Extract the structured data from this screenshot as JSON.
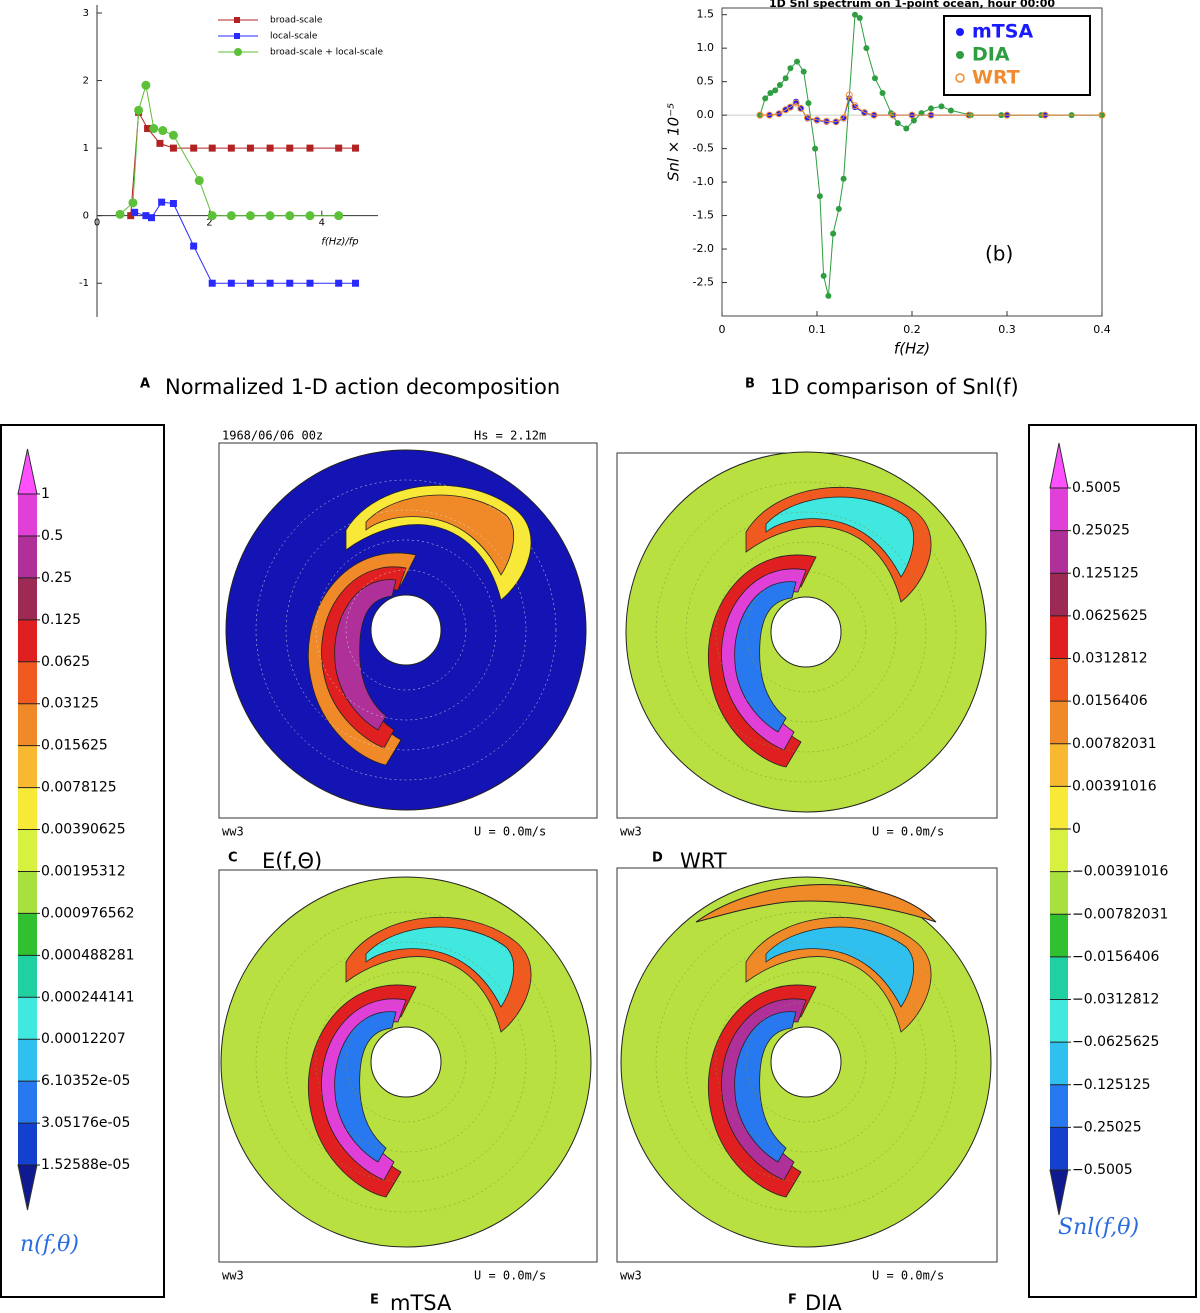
{
  "chart_data": [
    {
      "type": "line",
      "panel_label": "A",
      "caption": "Normalized 1-D action decomposition",
      "xlabel": "f(Hz)/fp",
      "xlim": [
        0,
        5
      ],
      "ylim": [
        -1.5,
        3
      ],
      "xticks": [
        0,
        2,
        4
      ],
      "yticks": [
        -1,
        0,
        1,
        2,
        3
      ],
      "grid": false,
      "legend": "upper right",
      "series": [
        {
          "name": "broad-scale",
          "color": "#b22222",
          "marker": "square",
          "x": [
            0.6,
            0.74,
            0.9,
            1.12,
            1.36,
            1.72,
            2.05,
            2.39,
            2.73,
            3.08,
            3.43,
            3.79,
            4.3,
            4.6
          ],
          "values": [
            0,
            1.53,
            1.29,
            1.07,
            1.0,
            1.0,
            1.0,
            1.0,
            1.0,
            1.0,
            1.0,
            1.0,
            1.0,
            1.0
          ]
        },
        {
          "name": "local-scale",
          "color": "#2a2aff",
          "marker": "square",
          "x": [
            0.67,
            0.87,
            0.97,
            1.15,
            1.36,
            1.72,
            2.05,
            2.39,
            2.73,
            3.08,
            3.43,
            3.79,
            4.3,
            4.6
          ],
          "values": [
            0.05,
            0,
            -0.03,
            0.2,
            0.18,
            -0.45,
            -1,
            -1,
            -1,
            -1,
            -1,
            -1,
            -1,
            -1
          ]
        },
        {
          "name": "broad-scale + local-scale",
          "color": "#5cc038",
          "marker": "circle",
          "x": [
            0.41,
            0.64,
            0.74,
            0.87,
            1.01,
            1.17,
            1.36,
            1.82,
            2.05,
            2.39,
            2.73,
            3.08,
            3.43,
            3.79,
            4.3
          ],
          "values": [
            0.02,
            0.19,
            1.56,
            1.93,
            1.29,
            1.26,
            1.19,
            0.52,
            0,
            0,
            0,
            0,
            0,
            0,
            0
          ]
        }
      ]
    },
    {
      "type": "line",
      "panel_label": "B",
      "caption": "1D comparison of Snl(f)",
      "title": "1D Snl spectrum on 1-point ocean, hour 00:00",
      "xlabel": "f(Hz)",
      "ylabel": "Snl × 10⁻⁵",
      "annotation": "(b)",
      "xlim": [
        0,
        0.4
      ],
      "ylim": [
        -3,
        1.6
      ],
      "xticks": [
        0,
        0.1,
        0.2,
        0.3,
        0.4
      ],
      "yticks": [
        1.5,
        {
          "value": 1,
          "label": "1.0"
        },
        0.5,
        {
          "value": 0,
          "label": "0.0"
        },
        -0.5,
        {
          "value": -1,
          "label": "-1.0"
        },
        -1.5,
        {
          "value": -2,
          "label": "-2.0"
        },
        -2.5
      ],
      "grid": false,
      "legend": "upper right",
      "series": [
        {
          "name": "mTSA",
          "color": "#1a1aff",
          "marker": "circle",
          "x": [
            0.04,
            0.05,
            0.06,
            0.067,
            0.072,
            0.078,
            0.083,
            0.09,
            0.1,
            0.11,
            0.12,
            0.128,
            0.134,
            0.14,
            0.15,
            0.16,
            0.18,
            0.2,
            0.22,
            0.26,
            0.3,
            0.34,
            0.4
          ],
          "values": [
            0,
            0,
            0.02,
            0.08,
            0.12,
            0.2,
            0.1,
            -0.05,
            -0.08,
            -0.1,
            -0.1,
            -0.05,
            0.25,
            0.12,
            0.03,
            0,
            0,
            0,
            0,
            0,
            0,
            0,
            0
          ]
        },
        {
          "name": "DIA",
          "color": "#2e9e40",
          "marker": "circle",
          "x": [
            0.04,
            0.0455,
            0.051,
            0.056,
            0.061,
            0.067,
            0.072,
            0.079,
            0.086,
            0.091,
            0.098,
            0.103,
            0.107,
            0.112,
            0.117,
            0.123,
            0.128,
            0.14,
            0.145,
            0.152,
            0.161,
            0.169,
            0.178,
            0.185,
            0.194,
            0.202,
            0.21,
            0.22,
            0.231,
            0.241,
            0.262,
            0.294,
            0.336,
            0.368,
            0.4
          ],
          "values": [
            0,
            0.25,
            0.33,
            0.37,
            0.45,
            0.55,
            0.7,
            0.8,
            0.65,
            0.18,
            -0.5,
            -1.21,
            -2.4,
            -2.7,
            -1.77,
            -1.4,
            -0.95,
            1.5,
            1.45,
            1.0,
            0.55,
            0.33,
            0.03,
            -0.12,
            -0.2,
            -0.08,
            0.03,
            0.1,
            0.13,
            0.07,
            0,
            0,
            0,
            0,
            0
          ]
        },
        {
          "name": "WRT",
          "color": "#f08c30",
          "marker": "open-circle",
          "x": [
            0.04,
            0.05,
            0.06,
            0.067,
            0.072,
            0.078,
            0.083,
            0.09,
            0.1,
            0.11,
            0.12,
            0.128,
            0.134,
            0.14,
            0.15,
            0.16,
            0.18,
            0.2,
            0.22,
            0.26,
            0.3,
            0.34,
            0.4
          ],
          "values": [
            0,
            0,
            0.02,
            0.08,
            0.12,
            0.18,
            0.1,
            -0.04,
            -0.07,
            -0.09,
            -0.1,
            -0.04,
            0.3,
            0.14,
            0.04,
            0,
            0,
            0,
            0,
            0,
            0,
            0,
            0
          ]
        }
      ]
    }
  ],
  "panels": [
    {
      "label": "C",
      "caption": "E(f,Θ)",
      "header_left": "1968/06/06 00z",
      "header_right": "Hs =  2.12m",
      "footer_left": "ww3",
      "footer_right": "U =  0.0m/s"
    },
    {
      "label": "D",
      "caption": "WRT",
      "footer_left": "ww3",
      "footer_right": "U =  0.0m/s"
    },
    {
      "label": "E",
      "caption": "mTSA",
      "footer_left": "ww3",
      "footer_right": "U =  0.0m/s"
    },
    {
      "label": "F",
      "caption": "DIA",
      "footer_left": "ww3",
      "footer_right": "U =  0.0m/s"
    }
  ],
  "palette": {
    "top": "#ff50ff",
    "bottom": "#101a90",
    "segments": [
      "#e040d8",
      "#b0309a",
      "#9c2a55",
      "#e02020",
      "#f05a20",
      "#f08a28",
      "#f8b830",
      "#f8e838",
      "#d8f040",
      "#a8e040",
      "#30c030",
      "#20d0a0",
      "#40e8e0",
      "#30c0f0",
      "#2878f0",
      "#1440d0"
    ]
  },
  "colorbars": [
    {
      "title": "n(f,θ)",
      "labels": [
        "1",
        "0.5",
        "0.25",
        "0.125",
        "0.0625",
        "0.03125",
        "0.015625",
        "0.0078125",
        "0.00390625",
        "0.00195312",
        "0.000976562",
        "0.000488281",
        "0.000244141",
        "0.00012207",
        "6.10352e-05",
        "3.05176e-05",
        "1.52588e-05"
      ]
    },
    {
      "title": "Snl(f,θ)",
      "labels": [
        "0.5005",
        "0.25025",
        "0.125125",
        "0.0625625",
        "0.0312812",
        "0.0156406",
        "0.00782031",
        "0.00391016",
        "0",
        "−0.00391016",
        "−0.00782031",
        "−0.0156406",
        "−0.0312812",
        "−0.0625625",
        "−0.125125",
        "−0.25025",
        "−0.5005"
      ]
    }
  ]
}
